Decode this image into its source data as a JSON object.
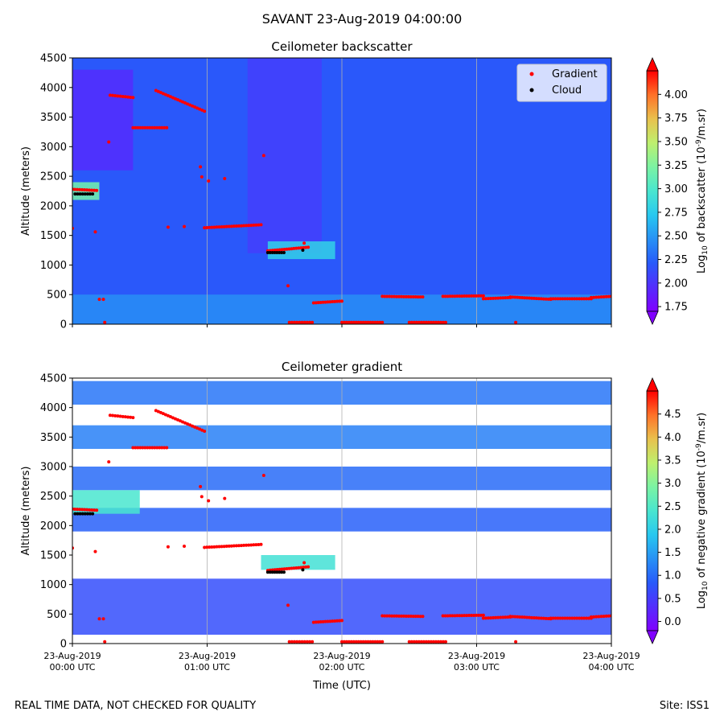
{
  "figure": {
    "title": "SAVANT 23-Aug-2019 04:00:00",
    "footer_left": "REAL TIME DATA, NOT CHECKED FOR QUALITY",
    "footer_right": "Site: ISS1"
  },
  "colors": {
    "gradient_marker": "#ff0000",
    "cloud_marker": "#000000",
    "grid": "#b0b0b0"
  },
  "chart_data": [
    {
      "type": "heatmap",
      "title": "Ceilometer backscatter",
      "ylabel": "Altitude (meters)",
      "xlabel": "",
      "ylim": [
        0,
        4500
      ],
      "yticks": [
        0,
        500,
        1000,
        1500,
        2000,
        2500,
        3000,
        3500,
        4000,
        4500
      ],
      "xlim_hours_utc": [
        0,
        4
      ],
      "xticks": [
        "23-Aug-2019\n00:00 UTC",
        "23-Aug-2019\n01:00 UTC",
        "23-Aug-2019\n02:00 UTC",
        "23-Aug-2019\n03:00 UTC",
        "23-Aug-2019\n04:00 UTC"
      ],
      "show_xtick_labels": false,
      "grid": "vertical",
      "colorbar": {
        "label": "Log10 of backscatter (10^-9/m.sr)",
        "range": [
          1.7,
          4.25
        ],
        "ticks": [
          "1.75",
          "2.00",
          "2.25",
          "2.50",
          "2.75",
          "3.00",
          "3.25",
          "3.50",
          "3.75",
          "4.00"
        ],
        "extend": "both"
      },
      "legend": {
        "placement": "top-right",
        "entries": [
          "Gradient",
          "Cloud"
        ]
      },
      "background_level": 2.2,
      "features": [
        {
          "t": [
            0.0,
            0.45
          ],
          "z": [
            2600,
            4300
          ],
          "value": 1.95
        },
        {
          "t": [
            1.3,
            1.85
          ],
          "z": [
            1200,
            4500
          ],
          "value": 2.05
        },
        {
          "t": [
            0.0,
            4.0
          ],
          "z": [
            0,
            500
          ],
          "value": 2.45
        },
        {
          "t": [
            0.0,
            0.2
          ],
          "z": [
            2100,
            2400
          ],
          "value": 3.2
        },
        {
          "t": [
            1.45,
            1.95
          ],
          "z": [
            1100,
            1400
          ],
          "value": 2.8
        }
      ]
    },
    {
      "type": "heatmap",
      "title": "Ceilometer gradient",
      "ylabel": "Altitude (meters)",
      "xlabel": "Time (UTC)",
      "ylim": [
        0,
        4500
      ],
      "yticks": [
        0,
        500,
        1000,
        1500,
        2000,
        2500,
        3000,
        3500,
        4000,
        4500
      ],
      "xlim_hours_utc": [
        0,
        4
      ],
      "xticks": [
        "23-Aug-2019\n00:00 UTC",
        "23-Aug-2019\n01:00 UTC",
        "23-Aug-2019\n02:00 UTC",
        "23-Aug-2019\n03:00 UTC",
        "23-Aug-2019\n04:00 UTC"
      ],
      "show_xtick_labels": true,
      "grid": "vertical",
      "colorbar": {
        "label": "Log10 of negative gradient (10^-9/m.sr)",
        "range": [
          -0.2,
          5.0
        ],
        "ticks": [
          "0.0",
          "0.5",
          "1.0",
          "1.5",
          "2.0",
          "2.5",
          "3.0",
          "3.5",
          "4.0",
          "4.5"
        ],
        "extend": "both"
      },
      "bands": [
        {
          "t": [
            0.0,
            4.0
          ],
          "z": [
            150,
            1100
          ],
          "value": 0.7
        },
        {
          "t": [
            0.0,
            4.0
          ],
          "z": [
            1900,
            2300
          ],
          "value": 0.9
        },
        {
          "t": [
            0.0,
            4.0
          ],
          "z": [
            2600,
            3000
          ],
          "value": 1.0
        },
        {
          "t": [
            0.0,
            4.0
          ],
          "z": [
            3300,
            3700
          ],
          "value": 1.2
        },
        {
          "t": [
            0.0,
            4.0
          ],
          "z": [
            4050,
            4450
          ],
          "value": 1.1
        },
        {
          "t": [
            0.0,
            0.5
          ],
          "z": [
            2200,
            2600
          ],
          "value": 2.4
        },
        {
          "t": [
            1.4,
            1.95
          ],
          "z": [
            1250,
            1500
          ],
          "value": 2.3
        }
      ]
    }
  ],
  "overlays": {
    "gradient_segments": [
      {
        "t": [
          0.28,
          0.45
        ],
        "z": [
          3870,
          3830
        ]
      },
      {
        "t": [
          0.45,
          0.7
        ],
        "z": [
          3320,
          3320
        ]
      },
      {
        "t": [
          0.62,
          0.98
        ],
        "z": [
          3950,
          3600
        ]
      },
      {
        "t": [
          0.0,
          0.18
        ],
        "z": [
          2280,
          2260
        ]
      },
      {
        "t": [
          0.98,
          1.4
        ],
        "z": [
          1630,
          1680
        ]
      },
      {
        "t": [
          1.45,
          1.75
        ],
        "z": [
          1240,
          1300
        ]
      },
      {
        "t": [
          1.79,
          2.0
        ],
        "z": [
          360,
          390
        ]
      },
      {
        "t": [
          2.3,
          2.6
        ],
        "z": [
          470,
          460
        ]
      },
      {
        "t": [
          2.75,
          3.05
        ],
        "z": [
          470,
          480
        ]
      },
      {
        "t": [
          3.05,
          3.25
        ],
        "z": [
          430,
          450
        ]
      },
      {
        "t": [
          3.25,
          3.55
        ],
        "z": [
          460,
          420
        ]
      },
      {
        "t": [
          3.55,
          3.85
        ],
        "z": [
          430,
          430
        ]
      },
      {
        "t": [
          3.85,
          4.0
        ],
        "z": [
          450,
          470
        ]
      },
      {
        "t": [
          1.61,
          1.78
        ],
        "z": [
          30,
          30
        ]
      },
      {
        "t": [
          2.0,
          2.3
        ],
        "z": [
          30,
          30
        ]
      },
      {
        "t": [
          2.5,
          2.77
        ],
        "z": [
          30,
          30
        ]
      }
    ],
    "gradient_points": [
      {
        "t": 0.0,
        "z": 1620
      },
      {
        "t": 0.17,
        "z": 1560
      },
      {
        "t": 0.2,
        "z": 420
      },
      {
        "t": 0.23,
        "z": 420
      },
      {
        "t": 0.24,
        "z": 30
      },
      {
        "t": 0.27,
        "z": 3080
      },
      {
        "t": 0.71,
        "z": 1640
      },
      {
        "t": 0.83,
        "z": 1650
      },
      {
        "t": 0.95,
        "z": 2660
      },
      {
        "t": 0.96,
        "z": 2490
      },
      {
        "t": 1.01,
        "z": 2420
      },
      {
        "t": 1.13,
        "z": 2460
      },
      {
        "t": 1.42,
        "z": 2850
      },
      {
        "t": 1.6,
        "z": 650
      },
      {
        "t": 1.72,
        "z": 1370
      },
      {
        "t": 3.29,
        "z": 30
      }
    ],
    "cloud_segments": [
      {
        "t": [
          0.02,
          0.15
        ],
        "z": [
          2200,
          2200
        ]
      },
      {
        "t": [
          1.45,
          1.57
        ],
        "z": [
          1210,
          1210
        ]
      }
    ],
    "cloud_points": [
      {
        "t": 1.71,
        "z": 1250
      }
    ]
  }
}
